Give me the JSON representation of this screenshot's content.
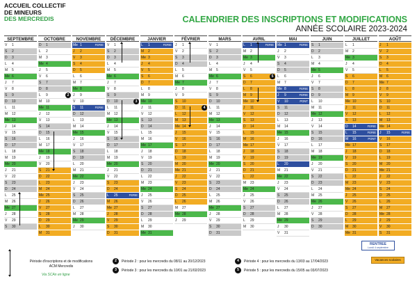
{
  "brand": {
    "line1": "ACCUEIL COLLECTIF",
    "line2": "DE MINEURS",
    "line3": "DES MERCREDIS"
  },
  "header": {
    "title": "CALENDRIER DES INSCRIPTIONS ET MODIFICATIONS",
    "subtitle": "ANNÉE SCOLAIRE 2023-2024"
  },
  "calendar": {
    "months": [
      {
        "name": "SEPTEMBRE",
        "start": "V",
        "days": 30
      },
      {
        "name": "OCTOBRE",
        "start": "D",
        "days": 31
      },
      {
        "name": "NOVEMBRE",
        "start": "Me",
        "days": 30
      },
      {
        "name": "DÉCEMBRE",
        "start": "V",
        "days": 31
      },
      {
        "name": "JANVIER",
        "start": "L",
        "days": 31
      },
      {
        "name": "FÉVRIER",
        "start": "J",
        "days": 29
      },
      {
        "name": "MARS",
        "start": "V",
        "days": 31
      },
      {
        "name": "AVRIL",
        "start": "L",
        "days": 30
      },
      {
        "name": "MAI",
        "start": "Me",
        "days": 31
      },
      {
        "name": "JUIN",
        "start": "S",
        "days": 30
      },
      {
        "name": "JUILLET",
        "start": "L",
        "days": 31
      },
      {
        "name": "AOÛT",
        "start": "J",
        "days": 31
      }
    ],
    "holiday_ranges": [
      [
        1,
        21,
        31
      ],
      [
        2,
        1,
        5
      ],
      [
        3,
        23,
        31
      ],
      [
        4,
        1,
        7
      ],
      [
        5,
        10,
        26
      ],
      [
        7,
        6,
        22
      ],
      [
        10,
        6,
        31
      ],
      [
        11,
        1,
        31
      ]
    ],
    "notes": [
      {
        "month": 2,
        "day": 1,
        "text": "FERIE",
        "blue": true
      },
      {
        "month": 2,
        "day": 11,
        "text": "FERIE",
        "blue": true
      },
      {
        "month": 3,
        "day": 25,
        "text": "FERIE",
        "blue": true
      },
      {
        "month": 4,
        "day": 1,
        "text": "FERIE",
        "blue": true
      },
      {
        "month": 7,
        "day": 1,
        "text": "FERIE",
        "blue": true
      },
      {
        "month": 8,
        "day": 1,
        "text": "FERIE",
        "blue": true
      },
      {
        "month": 8,
        "day": 8,
        "text": "FERIE",
        "blue": true
      },
      {
        "month": 8,
        "day": 9,
        "text": "FERIE",
        "blue": true
      },
      {
        "month": 8,
        "day": 10,
        "text": "PONT",
        "blue": true
      },
      {
        "month": 8,
        "day": 20,
        "text": "",
        "blue": true
      },
      {
        "month": 10,
        "day": 14,
        "text": "FERIE",
        "blue": true
      },
      {
        "month": 10,
        "day": 15,
        "text": "FERIE",
        "blue": true
      },
      {
        "month": 10,
        "day": 16,
        "text": "PONT",
        "blue": true
      },
      {
        "month": 11,
        "day": 15,
        "text": "FERIE",
        "blue": true
      }
    ],
    "markers": [
      {
        "label": "2",
        "month": 1,
        "day": 9
      },
      {
        "label": "3",
        "month": 3,
        "day": 10
      },
      {
        "label": "4",
        "month": 5,
        "day": 11
      },
      {
        "label": "5",
        "month": 7,
        "day": 6
      }
    ]
  },
  "legend": {
    "period_text": "Période d'inscriptions et de modifications",
    "acm": "ACM Mercredis",
    "link": "Via SCAn en ligne",
    "periods": [
      {
        "num": "2",
        "text": "Période 2 : pour les mercredis du 08/11 au 20/12/2023"
      },
      {
        "num": "3",
        "text": "Période 3 : pour les mercredis du 10/01 au 21/02/2023"
      },
      {
        "num": "4",
        "text": "Période 4 : pour les mercredis du 13/03 au 17/04/2023"
      },
      {
        "num": "5",
        "text": "Période 5 : pour les mercredis du 15/05 au 03/07/2023"
      }
    ],
    "rentree": "RENTREE",
    "rentree_sub": "Lundi 4 septembre",
    "vacances": "Vacances scolaires",
    "colors": {
      "wednesday": "#4cb84b",
      "holiday": "#f2ac23",
      "weekend": "#c9c9c9",
      "ferie": "#2e4f9f"
    }
  }
}
